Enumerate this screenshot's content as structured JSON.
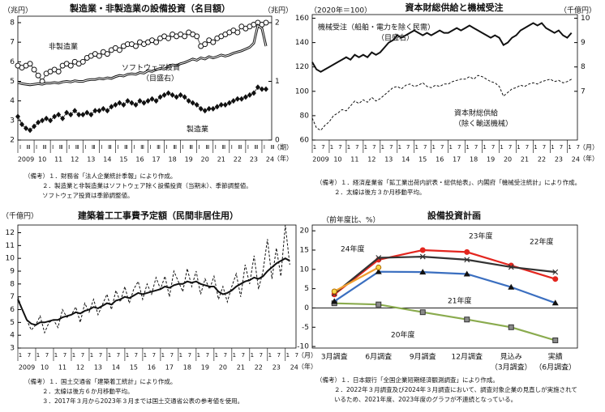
{
  "chart_data": [
    {
      "type": "line",
      "title": "製造業・非製造業の設備投資（名目額）",
      "ylabel": "（兆円）",
      "y2label": "（兆円）",
      "x_unit_labels": [
        "（期）",
        "（年）"
      ],
      "subtick_labels": [
        "Ⅰ",
        "Ⅲ"
      ],
      "x": [
        2009,
        2009.25,
        2009.5,
        2009.75,
        2010,
        2010.25,
        2010.5,
        2010.75,
        2011,
        2011.25,
        2011.5,
        2011.75,
        2012,
        2012.25,
        2012.5,
        2012.75,
        2013,
        2013.25,
        2013.5,
        2013.75,
        2014,
        2014.25,
        2014.5,
        2014.75,
        2015,
        2015.25,
        2015.5,
        2015.75,
        2016,
        2016.25,
        2016.5,
        2016.75,
        2017,
        2017.25,
        2017.5,
        2017.75,
        2018,
        2018.25,
        2018.5,
        2018.75,
        2019,
        2019.25,
        2019.5,
        2019.75,
        2020,
        2020.25,
        2020.5,
        2020.75,
        2021,
        2021.25,
        2021.5,
        2021.75,
        2022,
        2022.25,
        2022.5,
        2022.75,
        2023,
        2023.25,
        2023.5,
        2023.75,
        2024,
        2024.25
      ],
      "xlim": [
        2009,
        2024.6
      ],
      "xticks": [
        2009,
        {
          "value": 2010,
          "label": "10"
        },
        {
          "value": 2011,
          "label": "11"
        },
        {
          "value": 2012,
          "label": "12"
        },
        {
          "value": 2013,
          "label": "13"
        },
        {
          "value": 2014,
          "label": "14"
        },
        {
          "value": 2015,
          "label": "15"
        },
        {
          "value": 2016,
          "label": "16"
        },
        {
          "value": 2017,
          "label": "17"
        },
        {
          "value": 2018,
          "label": "18"
        },
        {
          "value": 2019,
          "label": "19"
        },
        {
          "value": 2020,
          "label": "20"
        },
        {
          "value": 2021,
          "label": "21"
        },
        {
          "value": 2022,
          "label": "22"
        },
        {
          "value": 2023,
          "label": "23"
        },
        {
          "value": 2024,
          "label": "24"
        }
      ],
      "ylim": [
        2,
        8.33
      ],
      "yticks": [
        2,
        3,
        4,
        5,
        6,
        7,
        8
      ],
      "y2lim": [
        0,
        2.11
      ],
      "y2ticks": [
        0,
        1,
        2
      ],
      "series": [
        {
          "name": "非製造業",
          "color": "#111111",
          "line": "thin",
          "marker": "circle-open",
          "values": [
            5.8,
            5.7,
            5.8,
            5.9,
            5.6,
            5.3,
            5.0,
            5.4,
            5.5,
            5.6,
            5.5,
            5.8,
            5.9,
            5.8,
            6.0,
            5.9,
            6.0,
            6.2,
            6.3,
            6.4,
            6.3,
            6.5,
            6.4,
            6.6,
            6.7,
            6.6,
            6.8,
            6.9,
            6.9,
            6.8,
            7.0,
            6.9,
            7.0,
            7.1,
            7.0,
            7.2,
            7.3,
            7.2,
            7.4,
            7.3,
            7.4,
            7.3,
            7.5,
            7.4,
            7.3,
            6.8,
            6.9,
            7.1,
            7.0,
            7.2,
            7.3,
            7.4,
            7.5,
            7.6,
            7.5,
            7.8,
            7.7,
            7.8,
            7.9,
            8.0,
            7.9,
            8.0
          ]
        },
        {
          "name": "製造業",
          "color": "#111111",
          "line": "thin",
          "marker": "diamond",
          "values": [
            3.2,
            2.8,
            2.6,
            2.5,
            2.7,
            2.9,
            3.0,
            3.1,
            3.0,
            3.2,
            3.3,
            3.1,
            3.4,
            3.3,
            3.5,
            3.3,
            3.3,
            3.4,
            3.3,
            3.5,
            3.5,
            3.6,
            3.5,
            3.7,
            3.8,
            3.9,
            3.8,
            4.0,
            3.9,
            3.8,
            4.0,
            3.9,
            4.0,
            4.1,
            4.0,
            4.2,
            4.3,
            4.4,
            4.3,
            4.2,
            4.3,
            4.2,
            4.0,
            3.9,
            3.8,
            3.6,
            3.5,
            3.6,
            3.6,
            3.7,
            3.8,
            3.8,
            3.9,
            4.0,
            4.1,
            4.1,
            4.2,
            4.3,
            4.4,
            4.7,
            4.6,
            4.6
          ]
        },
        {
          "name": "ソフトウェア投資",
          "color": "#111111",
          "line": "double",
          "axis": "y2",
          "values": [
            0.98,
            0.96,
            0.95,
            0.94,
            0.95,
            0.96,
            0.95,
            0.97,
            0.97,
            0.98,
            0.97,
            0.99,
            1.0,
            0.99,
            1.01,
            1.0,
            1.0,
            1.02,
            1.03,
            1.03,
            1.05,
            1.04,
            1.06,
            1.05,
            1.08,
            1.1,
            1.09,
            1.12,
            1.13,
            1.12,
            1.15,
            1.14,
            1.18,
            1.17,
            1.2,
            1.22,
            1.21,
            1.25,
            1.28,
            1.27,
            1.3,
            1.32,
            1.35,
            1.38,
            1.36,
            1.4,
            1.38,
            1.42,
            1.4,
            1.42,
            1.45,
            1.43,
            1.45,
            1.48,
            1.5,
            1.52,
            1.55,
            1.58,
            1.65,
            1.95,
            1.9,
            1.6
          ]
        }
      ],
      "annotations": [
        "（目盛右）"
      ],
      "notes": [
        "（備考）１．財務省「法人企業統計季報」により作成。",
        "２．製造業と非製造業はソフトウェア除く設備投資（当期末）、季節調整値。",
        "ソフトウェア投資は季節調整値。"
      ]
    },
    {
      "type": "line",
      "title": "資本財総供給と機械受注",
      "ylabel": "（2020年＝100）",
      "y2label": "（千億円）",
      "x_unit_labels": [
        "（月）",
        "（年）"
      ],
      "subtick_labels": [
        "1",
        "7"
      ],
      "x": [
        2009,
        2009.25,
        2009.5,
        2009.75,
        2010,
        2010.25,
        2010.5,
        2010.75,
        2011,
        2011.25,
        2011.5,
        2011.75,
        2012,
        2012.25,
        2012.5,
        2012.75,
        2013,
        2013.25,
        2013.5,
        2013.75,
        2014,
        2014.25,
        2014.5,
        2014.75,
        2015,
        2015.25,
        2015.5,
        2015.75,
        2016,
        2016.25,
        2016.5,
        2016.75,
        2017,
        2017.25,
        2017.5,
        2017.75,
        2018,
        2018.25,
        2018.5,
        2018.75,
        2019,
        2019.25,
        2019.5,
        2019.75,
        2020,
        2020.25,
        2020.5,
        2020.75,
        2021,
        2021.25,
        2021.5,
        2021.75,
        2022,
        2022.25,
        2022.5,
        2022.75,
        2023,
        2023.25,
        2023.5,
        2023.75,
        2024,
        2024.25
      ],
      "xlim": [
        2009,
        2024.6
      ],
      "xticks": [
        2009,
        {
          "value": 2010,
          "label": "10"
        },
        {
          "value": 2011,
          "label": "11"
        },
        {
          "value": 2012,
          "label": "12"
        },
        {
          "value": 2013,
          "label": "13"
        },
        {
          "value": 2014,
          "label": "14"
        },
        {
          "value": 2015,
          "label": "15"
        },
        {
          "value": 2016,
          "label": "16"
        },
        {
          "value": 2017,
          "label": "17"
        },
        {
          "value": 2018,
          "label": "18"
        },
        {
          "value": 2019,
          "label": "19"
        },
        {
          "value": 2020,
          "label": "20"
        },
        {
          "value": 2021,
          "label": "21"
        },
        {
          "value": 2022,
          "label": "22"
        },
        {
          "value": 2023,
          "label": "23"
        },
        {
          "value": 2024,
          "label": "24"
        }
      ],
      "ylim": [
        60,
        163
      ],
      "yticks": [
        60,
        80,
        100,
        120,
        140,
        160
      ],
      "y2lim": [
        5,
        10.15
      ],
      "y2ticks": [
        7,
        8,
        9,
        10
      ],
      "series": [
        {
          "name": "機械受注（船舶・電力を除く民需）",
          "color": "#111111",
          "line": "thick",
          "axis": "y2",
          "values": [
            8.2,
            7.9,
            7.8,
            7.9,
            8.0,
            8.1,
            8.2,
            8.3,
            8.4,
            8.3,
            8.5,
            8.4,
            8.5,
            8.4,
            8.6,
            8.5,
            8.6,
            8.8,
            9.0,
            9.1,
            9.3,
            9.2,
            9.3,
            9.4,
            9.5,
            9.4,
            9.3,
            9.4,
            9.3,
            9.4,
            9.5,
            9.4,
            9.4,
            9.5,
            9.6,
            9.5,
            9.6,
            9.7,
            9.6,
            9.5,
            9.4,
            9.3,
            9.2,
            9.3,
            9.2,
            8.9,
            9.0,
            9.2,
            9.3,
            9.5,
            9.6,
            9.7,
            9.8,
            9.7,
            9.8,
            9.6,
            9.5,
            9.4,
            9.5,
            9.3,
            9.2,
            9.4
          ]
        },
        {
          "name": "資本財総供給",
          "color": "#111111",
          "line": "dashed",
          "values": [
            78,
            70,
            68,
            72,
            75,
            80,
            82,
            85,
            84,
            88,
            92,
            90,
            93,
            91,
            95,
            92,
            94,
            97,
            100,
            103,
            104,
            102,
            105,
            106,
            104,
            105,
            107,
            104,
            103,
            105,
            104,
            106,
            106,
            108,
            109,
            110,
            110,
            112,
            110,
            113,
            112,
            110,
            108,
            107,
            104,
            96,
            99,
            102,
            103,
            105,
            104,
            106,
            107,
            106,
            108,
            109,
            110,
            108,
            109,
            107,
            108,
            110
          ]
        }
      ],
      "annotations": [
        "（目盛右）",
        "（除く輸送機械）"
      ],
      "notes": [
        "（備考）１．経済産業省「鉱工業出荷内訳表・総供給表」、内閣府「機械受注統計」により作成。",
        "２．太線は後方３か月移動平均。"
      ]
    },
    {
      "type": "line",
      "title": "建築着工工事費予定額（民間非居住用）",
      "ylabel": "（千億円）",
      "x_unit_labels": [
        "（月）",
        "（年）"
      ],
      "subtick_labels": [
        "1",
        "7"
      ],
      "x": [
        2009,
        2009.25,
        2009.5,
        2009.75,
        2010,
        2010.25,
        2010.5,
        2010.75,
        2011,
        2011.25,
        2011.5,
        2011.75,
        2012,
        2012.25,
        2012.5,
        2012.75,
        2013,
        2013.25,
        2013.5,
        2013.75,
        2014,
        2014.25,
        2014.5,
        2014.75,
        2015,
        2015.25,
        2015.5,
        2015.75,
        2016,
        2016.25,
        2016.5,
        2016.75,
        2017,
        2017.25,
        2017.5,
        2017.75,
        2018,
        2018.25,
        2018.5,
        2018.75,
        2019,
        2019.25,
        2019.5,
        2019.75,
        2020,
        2020.25,
        2020.5,
        2020.75,
        2021,
        2021.25,
        2021.5,
        2021.75,
        2022,
        2022.25,
        2022.5,
        2022.75,
        2023,
        2023.25,
        2023.5,
        2023.75,
        2024,
        2024.25
      ],
      "xlim": [
        2009,
        2024.6
      ],
      "xticks": [
        2009,
        {
          "value": 2010,
          "label": "10"
        },
        {
          "value": 2011,
          "label": "11"
        },
        {
          "value": 2012,
          "label": "12"
        },
        {
          "value": 2013,
          "label": "13"
        },
        {
          "value": 2014,
          "label": "14"
        },
        {
          "value": 2015,
          "label": "15"
        },
        {
          "value": 2016,
          "label": "16"
        },
        {
          "value": 2017,
          "label": "17"
        },
        {
          "value": 2018,
          "label": "18"
        },
        {
          "value": 2019,
          "label": "19"
        },
        {
          "value": 2020,
          "label": "20"
        },
        {
          "value": 2021,
          "label": "21"
        },
        {
          "value": 2022,
          "label": "22"
        },
        {
          "value": 2023,
          "label": "23"
        },
        {
          "value": 2024,
          "label": "24"
        }
      ],
      "ylim": [
        3,
        12.6
      ],
      "yticks": [
        3,
        4,
        5,
        6,
        7,
        8,
        9,
        10,
        11,
        12
      ],
      "series": [
        {
          "color": "#111111",
          "line": "dashed",
          "values": [
            7.0,
            6.0,
            5.2,
            4.4,
            4.8,
            5.5,
            4.2,
            5.0,
            5.2,
            4.6,
            6.0,
            5.4,
            5.6,
            6.2,
            5.0,
            6.5,
            5.8,
            6.8,
            5.6,
            6.4,
            7.2,
            6.0,
            7.5,
            6.6,
            7.8,
            6.5,
            7.6,
            8.2,
            6.8,
            8.0,
            7.2,
            8.5,
            7.6,
            8.6,
            7.0,
            9.0,
            8.2,
            7.4,
            9.2,
            7.8,
            9.0,
            7.2,
            8.4,
            7.6,
            8.6,
            6.8,
            7.8,
            6.6,
            7.8,
            8.8,
            7.0,
            9.5,
            8.0,
            10.2,
            7.6,
            9.0,
            11.5,
            8.4,
            10.8,
            8.6,
            12.6,
            9.5
          ]
        },
        {
          "color": "#111111",
          "line": "thick",
          "values": [
            6.8,
            6.0,
            5.2,
            4.9,
            4.8,
            5.0,
            5.0,
            5.1,
            5.2,
            5.2,
            5.4,
            5.5,
            5.6,
            5.8,
            5.7,
            5.9,
            6.0,
            6.2,
            6.1,
            6.3,
            6.5,
            6.4,
            6.7,
            6.8,
            7.0,
            6.9,
            7.1,
            7.3,
            7.2,
            7.3,
            7.4,
            7.5,
            7.6,
            7.8,
            7.7,
            7.9,
            8.0,
            8.0,
            8.2,
            8.1,
            8.2,
            8.0,
            7.9,
            7.8,
            7.8,
            7.4,
            7.2,
            7.3,
            7.5,
            7.8,
            8.0,
            8.2,
            8.3,
            8.5,
            8.4,
            8.6,
            9.0,
            9.3,
            9.6,
            9.8,
            10.0,
            9.8
          ]
        }
      ],
      "notes": [
        "（備考）１．国土交通省「建築着工統計」により作成。",
        "２．太線は後方６か月移動平均。",
        "３．2017年３月から2023年３月までは国土交通省公表の参考値を使用。"
      ]
    },
    {
      "type": "line",
      "title": "設備投資計画",
      "ylabel": "（前年度比、%）",
      "categories": [
        "3月調査",
        "6月調査",
        "9月調査",
        "12月調査",
        "見込み",
        "実績"
      ],
      "category_sublabels": [
        null,
        null,
        null,
        null,
        "（3月調査）",
        "（6月調査）"
      ],
      "ylim": [
        -10.4,
        21.5
      ],
      "yticks": [
        -10,
        -5,
        0,
        5,
        10,
        15,
        20
      ],
      "series": [
        {
          "name": "20年度",
          "color": "#8aab4e",
          "marker": "square",
          "values": [
            1.2,
            0.9,
            -1.1,
            -3.0,
            -5.0,
            -8.4
          ]
        },
        {
          "name": "21年度",
          "color": "#3b6fc0",
          "marker": "triangle",
          "values": [
            1.7,
            9.4,
            9.3,
            8.8,
            5.4,
            1.3
          ]
        },
        {
          "name": "22年度",
          "color": "#e3261f",
          "marker": "circle",
          "values": [
            3.5,
            12.5,
            15.0,
            14.5,
            11.0,
            7.5
          ]
        },
        {
          "name": "23年度",
          "color": "#333333",
          "marker": "x",
          "values": [
            3.7,
            13.0,
            13.3,
            12.5,
            10.6,
            9.3
          ]
        },
        {
          "name": "24年度",
          "color": "#f0a030",
          "marker": "circle",
          "values": [
            4.3,
            10.5,
            null,
            null,
            null,
            null
          ]
        }
      ],
      "notes": [
        "（備考）１．日本銀行「全国企業短期経済観測調査」により作成。",
        "２．2022年３月調査及び2024年３月調査において、調査対象企業の見直しが実施されて",
        "いるため、2021年度、2023年度のグラフが不連続となっている。"
      ]
    }
  ]
}
